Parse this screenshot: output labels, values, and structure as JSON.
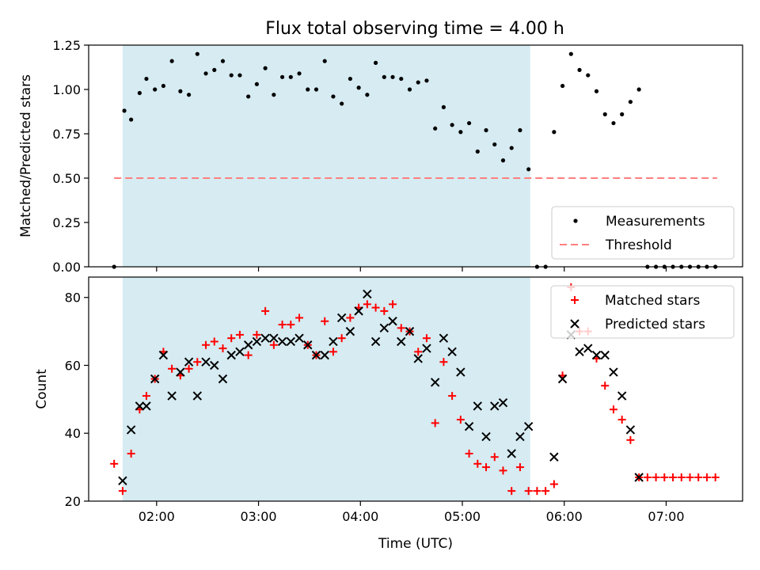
{
  "title": "Flux total observing time = 4.00 h",
  "colors": {
    "shade": "#add8e6",
    "measurement": "#000000",
    "threshold": "#ff7f7f",
    "matched": "#ff0000",
    "predicted": "#000000"
  },
  "chart_data": [
    {
      "type": "scatter",
      "panel": "top",
      "ylabel": "Matched/Predicted stars",
      "xlabel": "",
      "ylim": [
        0.0,
        1.25
      ],
      "yticks": [
        0.0,
        0.25,
        0.5,
        0.75,
        1.0,
        1.25
      ],
      "ytick_labels": [
        "0.00",
        "0.25",
        "0.50",
        "0.75",
        "1.00",
        "1.25"
      ],
      "xlim": [
        "01:20",
        "07:45"
      ],
      "xticks": [
        "02:00",
        "03:00",
        "04:00",
        "05:00",
        "06:00",
        "07:00"
      ],
      "grid": false,
      "legend_position": "lower right",
      "shaded_span": [
        "01:40",
        "05:40"
      ],
      "threshold": {
        "name": "Threshold",
        "y": 0.5,
        "x_range": [
          "01:35",
          "07:30"
        ],
        "style": "dashed"
      },
      "series": [
        {
          "name": "Measurements",
          "marker": "dot",
          "points": [
            [
              "01:35",
              0.0
            ],
            [
              "01:41",
              0.88
            ],
            [
              "01:45",
              0.83
            ],
            [
              "01:50",
              0.98
            ],
            [
              "01:54",
              1.06
            ],
            [
              "01:59",
              1.0
            ],
            [
              "02:04",
              1.02
            ],
            [
              "02:09",
              1.16
            ],
            [
              "02:14",
              0.99
            ],
            [
              "02:19",
              0.97
            ],
            [
              "02:24",
              1.2
            ],
            [
              "02:29",
              1.09
            ],
            [
              "02:34",
              1.11
            ],
            [
              "02:39",
              1.16
            ],
            [
              "02:44",
              1.08
            ],
            [
              "02:49",
              1.08
            ],
            [
              "02:54",
              0.96
            ],
            [
              "02:59",
              1.03
            ],
            [
              "03:04",
              1.12
            ],
            [
              "03:09",
              0.97
            ],
            [
              "03:14",
              1.07
            ],
            [
              "03:19",
              1.07
            ],
            [
              "03:24",
              1.09
            ],
            [
              "03:29",
              1.0
            ],
            [
              "03:34",
              1.0
            ],
            [
              "03:39",
              1.16
            ],
            [
              "03:44",
              0.96
            ],
            [
              "03:49",
              0.92
            ],
            [
              "03:54",
              1.06
            ],
            [
              "03:59",
              1.01
            ],
            [
              "04:04",
              0.97
            ],
            [
              "04:09",
              1.15
            ],
            [
              "04:14",
              1.07
            ],
            [
              "04:19",
              1.07
            ],
            [
              "04:24",
              1.06
            ],
            [
              "04:29",
              1.0
            ],
            [
              "04:34",
              1.04
            ],
            [
              "04:39",
              1.05
            ],
            [
              "04:44",
              0.78
            ],
            [
              "04:49",
              0.9
            ],
            [
              "04:54",
              0.8
            ],
            [
              "04:59",
              0.76
            ],
            [
              "05:04",
              0.81
            ],
            [
              "05:09",
              0.65
            ],
            [
              "05:14",
              0.77
            ],
            [
              "05:19",
              0.69
            ],
            [
              "05:24",
              0.6
            ],
            [
              "05:29",
              0.67
            ],
            [
              "05:34",
              0.77
            ],
            [
              "05:39",
              0.55
            ],
            [
              "05:44",
              0.0
            ],
            [
              "05:49",
              0.0
            ],
            [
              "05:54",
              0.76
            ],
            [
              "05:59",
              1.02
            ],
            [
              "06:04",
              1.2
            ],
            [
              "06:09",
              1.11
            ],
            [
              "06:14",
              1.08
            ],
            [
              "06:19",
              0.99
            ],
            [
              "06:24",
              0.86
            ],
            [
              "06:29",
              0.81
            ],
            [
              "06:34",
              0.86
            ],
            [
              "06:39",
              0.93
            ],
            [
              "06:44",
              1.0
            ],
            [
              "06:49",
              0.0
            ],
            [
              "06:54",
              0.0
            ],
            [
              "06:59",
              0.0
            ],
            [
              "07:04",
              0.0
            ],
            [
              "07:09",
              0.0
            ],
            [
              "07:14",
              0.0
            ],
            [
              "07:19",
              0.0
            ],
            [
              "07:24",
              0.0
            ],
            [
              "07:29",
              0.0
            ]
          ]
        }
      ]
    },
    {
      "type": "scatter",
      "panel": "bottom",
      "ylabel": "Count",
      "xlabel": "Time (UTC)",
      "ylim": [
        20,
        86
      ],
      "yticks": [
        20,
        40,
        60,
        80
      ],
      "ytick_labels": [
        "20",
        "40",
        "60",
        "80"
      ],
      "xlim": [
        "01:20",
        "07:45"
      ],
      "xticks": [
        "02:00",
        "03:00",
        "04:00",
        "05:00",
        "06:00",
        "07:00"
      ],
      "xtick_labels": [
        "02:00",
        "03:00",
        "04:00",
        "05:00",
        "06:00",
        "07:00"
      ],
      "grid": false,
      "legend_position": "upper right",
      "shaded_span": [
        "01:40",
        "05:40"
      ],
      "series": [
        {
          "name": "Matched stars",
          "marker": "plus",
          "points": [
            [
              "01:35",
              31
            ],
            [
              "01:40",
              23
            ],
            [
              "01:45",
              34
            ],
            [
              "01:50",
              47
            ],
            [
              "01:54",
              51
            ],
            [
              "01:59",
              56
            ],
            [
              "02:04",
              64
            ],
            [
              "02:09",
              59
            ],
            [
              "02:14",
              57
            ],
            [
              "02:19",
              59
            ],
            [
              "02:24",
              61
            ],
            [
              "02:29",
              66
            ],
            [
              "02:34",
              67
            ],
            [
              "02:39",
              65
            ],
            [
              "02:44",
              68
            ],
            [
              "02:49",
              69
            ],
            [
              "02:54",
              63
            ],
            [
              "02:59",
              69
            ],
            [
              "03:04",
              76
            ],
            [
              "03:09",
              66
            ],
            [
              "03:14",
              72
            ],
            [
              "03:19",
              72
            ],
            [
              "03:24",
              74
            ],
            [
              "03:29",
              66
            ],
            [
              "03:34",
              63
            ],
            [
              "03:39",
              73
            ],
            [
              "03:44",
              64
            ],
            [
              "03:49",
              68
            ],
            [
              "03:54",
              74
            ],
            [
              "03:59",
              77
            ],
            [
              "04:04",
              78
            ],
            [
              "04:09",
              77
            ],
            [
              "04:14",
              76
            ],
            [
              "04:19",
              78
            ],
            [
              "04:24",
              71
            ],
            [
              "04:29",
              70
            ],
            [
              "04:34",
              64
            ],
            [
              "04:39",
              68
            ],
            [
              "04:44",
              43
            ],
            [
              "04:49",
              61
            ],
            [
              "04:54",
              51
            ],
            [
              "04:59",
              44
            ],
            [
              "05:04",
              34
            ],
            [
              "05:09",
              31
            ],
            [
              "05:14",
              30
            ],
            [
              "05:19",
              33
            ],
            [
              "05:24",
              29
            ],
            [
              "05:29",
              23
            ],
            [
              "05:34",
              30
            ],
            [
              "05:39",
              23
            ],
            [
              "05:44",
              23
            ],
            [
              "05:49",
              23
            ],
            [
              "05:54",
              25
            ],
            [
              "05:59",
              57
            ],
            [
              "06:04",
              83
            ],
            [
              "06:09",
              70
            ],
            [
              "06:14",
              70
            ],
            [
              "06:19",
              62
            ],
            [
              "06:24",
              54
            ],
            [
              "06:29",
              47
            ],
            [
              "06:34",
              44
            ],
            [
              "06:39",
              38
            ],
            [
              "06:44",
              27
            ],
            [
              "06:49",
              27
            ],
            [
              "06:54",
              27
            ],
            [
              "06:59",
              27
            ],
            [
              "07:04",
              27
            ],
            [
              "07:09",
              27
            ],
            [
              "07:14",
              27
            ],
            [
              "07:19",
              27
            ],
            [
              "07:24",
              27
            ],
            [
              "07:29",
              27
            ]
          ]
        },
        {
          "name": "Predicted stars",
          "marker": "x",
          "points": [
            [
              "01:40",
              26
            ],
            [
              "01:45",
              41
            ],
            [
              "01:50",
              48
            ],
            [
              "01:54",
              48
            ],
            [
              "01:59",
              56
            ],
            [
              "02:04",
              63
            ],
            [
              "02:09",
              51
            ],
            [
              "02:14",
              58
            ],
            [
              "02:19",
              61
            ],
            [
              "02:24",
              51
            ],
            [
              "02:29",
              61
            ],
            [
              "02:34",
              60
            ],
            [
              "02:39",
              56
            ],
            [
              "02:44",
              63
            ],
            [
              "02:49",
              64
            ],
            [
              "02:54",
              66
            ],
            [
              "02:59",
              67
            ],
            [
              "03:04",
              68
            ],
            [
              "03:09",
              68
            ],
            [
              "03:14",
              67
            ],
            [
              "03:19",
              67
            ],
            [
              "03:24",
              68
            ],
            [
              "03:29",
              66
            ],
            [
              "03:34",
              63
            ],
            [
              "03:39",
              63
            ],
            [
              "03:44",
              67
            ],
            [
              "03:49",
              74
            ],
            [
              "03:54",
              70
            ],
            [
              "03:59",
              76
            ],
            [
              "04:04",
              81
            ],
            [
              "04:09",
              67
            ],
            [
              "04:14",
              71
            ],
            [
              "04:19",
              73
            ],
            [
              "04:24",
              67
            ],
            [
              "04:29",
              70
            ],
            [
              "04:34",
              62
            ],
            [
              "04:39",
              65
            ],
            [
              "04:44",
              55
            ],
            [
              "04:49",
              68
            ],
            [
              "04:54",
              64
            ],
            [
              "04:59",
              58
            ],
            [
              "05:04",
              42
            ],
            [
              "05:09",
              48
            ],
            [
              "05:14",
              39
            ],
            [
              "05:19",
              48
            ],
            [
              "05:24",
              49
            ],
            [
              "05:29",
              34
            ],
            [
              "05:34",
              39
            ],
            [
              "05:39",
              42
            ],
            [
              "05:54",
              33
            ],
            [
              "05:59",
              56
            ],
            [
              "06:04",
              69
            ],
            [
              "06:09",
              64
            ],
            [
              "06:14",
              65
            ],
            [
              "06:19",
              63
            ],
            [
              "06:24",
              63
            ],
            [
              "06:29",
              58
            ],
            [
              "06:34",
              51
            ],
            [
              "06:39",
              41
            ],
            [
              "06:44",
              27
            ]
          ]
        }
      ]
    }
  ]
}
